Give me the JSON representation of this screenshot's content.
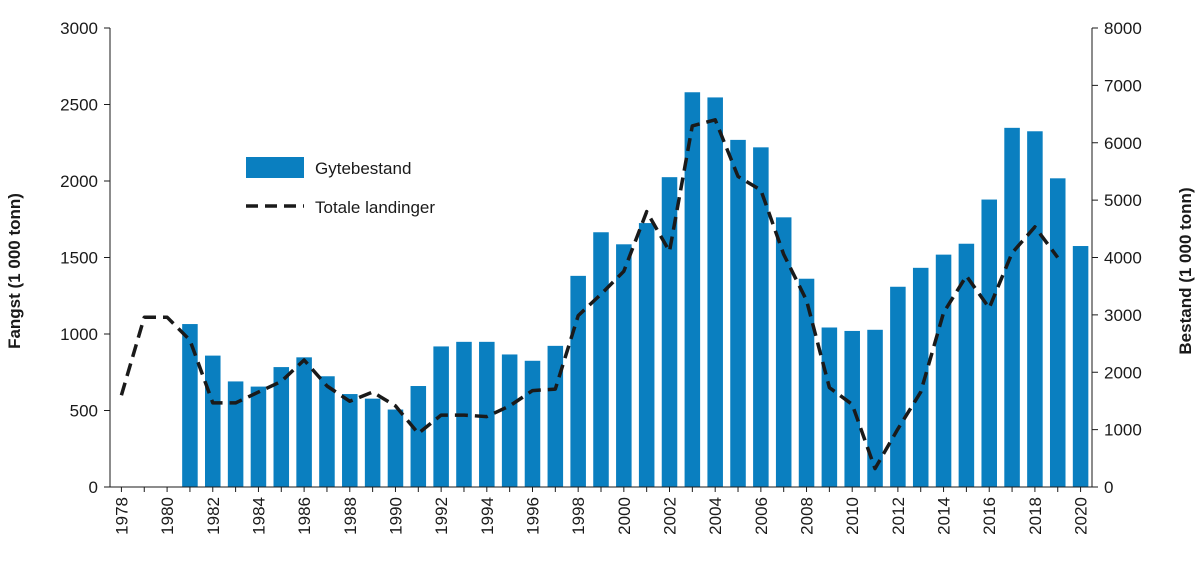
{
  "chart_data": {
    "type": "bar",
    "categories": [
      "1978",
      "1979",
      "1980",
      "1981",
      "1982",
      "1983",
      "1984",
      "1985",
      "1986",
      "1987",
      "1988",
      "1989",
      "1990",
      "1991",
      "1992",
      "1993",
      "1994",
      "1995",
      "1996",
      "1997",
      "1998",
      "1999",
      "2000",
      "2001",
      "2002",
      "2003",
      "2004",
      "2005",
      "2006",
      "2007",
      "2008",
      "2009",
      "2010",
      "2011",
      "2012",
      "2013",
      "2014",
      "2015",
      "2016",
      "2017",
      "2018",
      "2019",
      "2020"
    ],
    "xtick_labels": [
      "1978",
      "1980",
      "1982",
      "1984",
      "1986",
      "1988",
      "1990",
      "1992",
      "1994",
      "1996",
      "1998",
      "2000",
      "2002",
      "2004",
      "2006",
      "2008",
      "2010",
      "2012",
      "2014",
      "2016",
      "2018",
      "2020"
    ],
    "ylabel": "Fangst (1 000 tonn)",
    "y2label": "Bestand (1 000 tonn)",
    "ylim": [
      0,
      3000
    ],
    "y2lim": [
      0,
      8000
    ],
    "yticks": [
      0,
      500,
      1000,
      1500,
      2000,
      2500,
      3000
    ],
    "y2ticks": [
      0,
      1000,
      2000,
      3000,
      4000,
      5000,
      6000,
      7000,
      8000
    ],
    "legend_position": "upper-left-inside",
    "series": [
      {
        "name": "Gytebestand",
        "type": "bar",
        "axis": "right",
        "color": "#0a7fc0",
        "values": [
          null,
          null,
          null,
          2840,
          2290,
          1840,
          1750,
          2090,
          2260,
          1930,
          1620,
          1540,
          1350,
          1760,
          2450,
          2530,
          2530,
          2310,
          2200,
          2460,
          3680,
          4440,
          4230,
          4600,
          5400,
          6880,
          6790,
          6050,
          5920,
          4700,
          3630,
          2780,
          2720,
          2740,
          3490,
          3820,
          4050,
          4240,
          5010,
          6260,
          6200,
          5380,
          4200
        ]
      },
      {
        "name": "Totale landinger",
        "type": "line",
        "axis": "left",
        "color": "#1a1a1a",
        "dash": "dashed",
        "values": [
          600,
          1110,
          1110,
          960,
          550,
          550,
          620,
          690,
          830,
          660,
          560,
          620,
          530,
          350,
          470,
          470,
          460,
          530,
          630,
          640,
          1120,
          1260,
          1410,
          1800,
          1540,
          2360,
          2400,
          2030,
          1940,
          1520,
          1220,
          650,
          540,
          120,
          380,
          620,
          1140,
          1380,
          1170,
          1530,
          1700,
          1500,
          null
        ]
      }
    ]
  }
}
